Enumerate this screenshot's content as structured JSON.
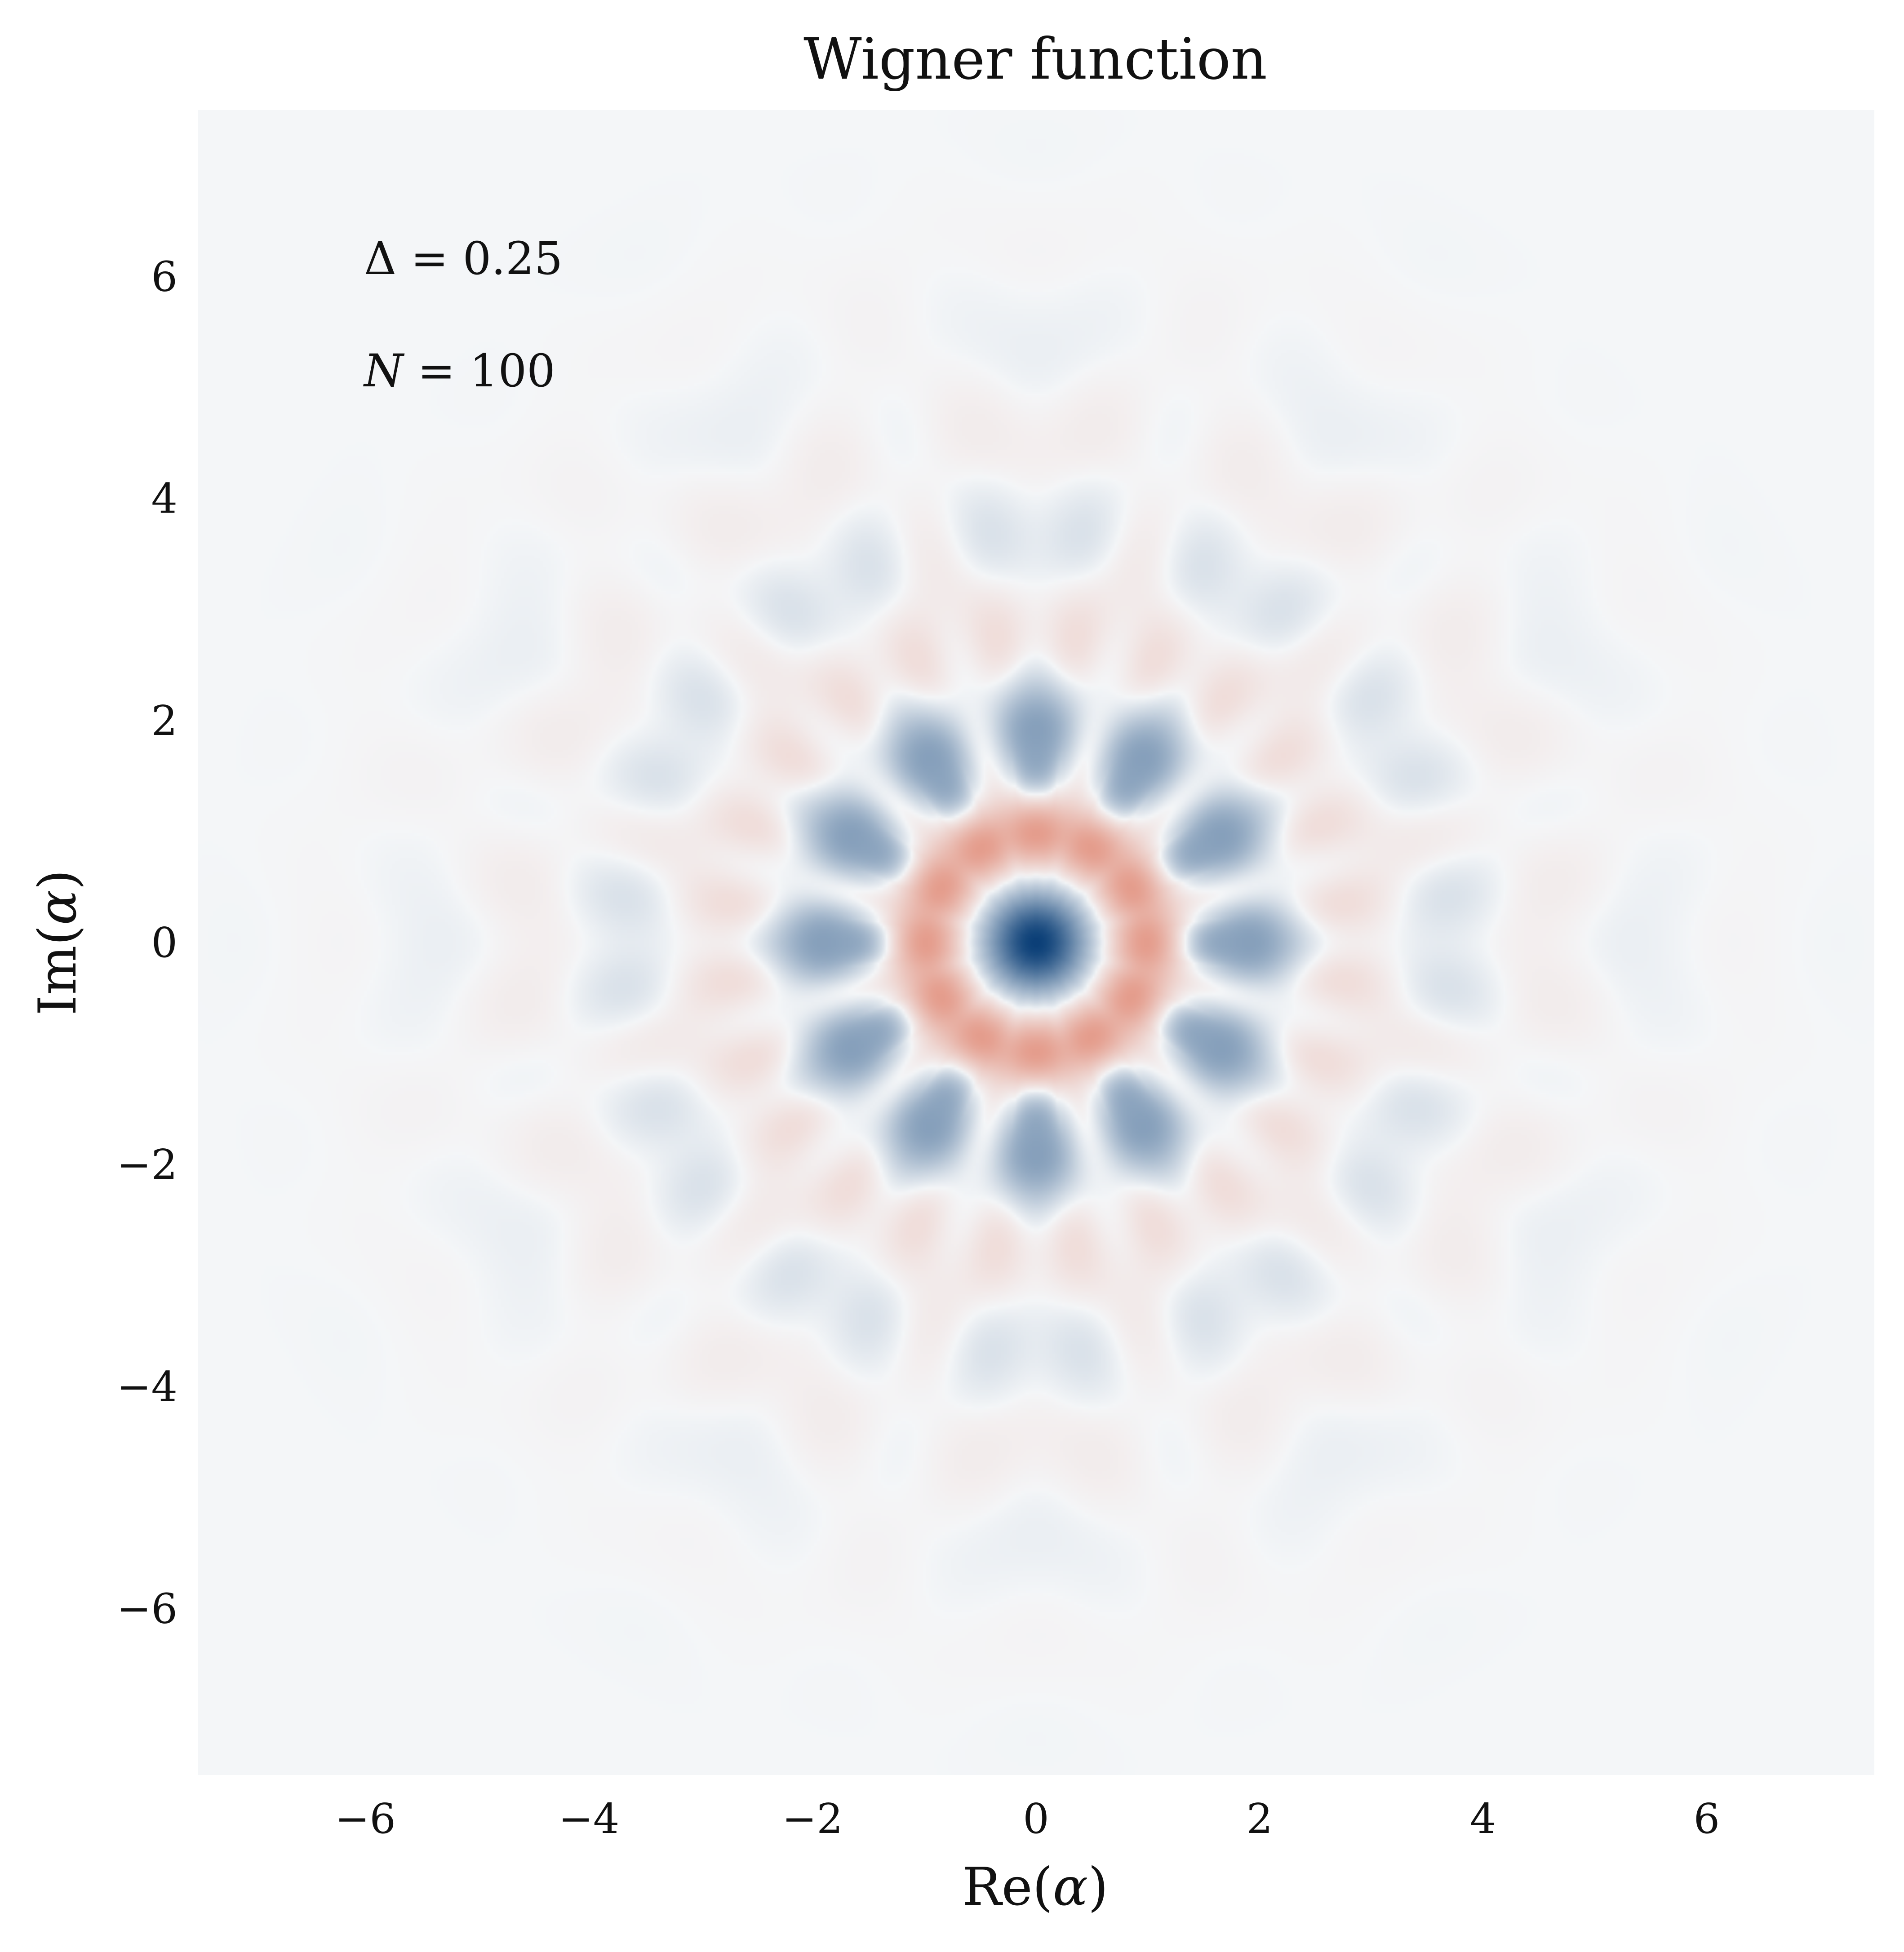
{
  "chart_data": {
    "type": "heatmap",
    "title": "Wigner function",
    "xlabel_pre": "Re(",
    "xlabel_var": "α",
    "xlabel_post": ")",
    "ylabel_pre": "Im(",
    "ylabel_var": "α",
    "ylabel_post": ")",
    "xlim": [
      -7.5,
      7.5
    ],
    "ylim": [
      -7.5,
      7.5
    ],
    "xticks": [
      -6,
      -4,
      -2,
      0,
      2,
      4,
      6
    ],
    "yticks": [
      -6,
      -4,
      -2,
      0,
      2,
      4,
      6
    ],
    "xtick_labels": [
      "−6",
      "−4",
      "−2",
      "0",
      "2",
      "4",
      "6"
    ],
    "ytick_labels": [
      "−6",
      "−4",
      "−2",
      "0",
      "2",
      "4",
      "6"
    ],
    "grid": false,
    "colormap": "RdBu (blue positive, red negative)",
    "colors": {
      "positive": "#0b3f77",
      "negative": "#dc6d53",
      "zero": "#f4f6f8"
    },
    "symmetry": "12-fold rotational",
    "features": {
      "center_peak": {
        "x": 0,
        "y": 0,
        "sign": "positive"
      },
      "negative_ring_radius": 1.0,
      "positive_petal_ring_radius": 1.95
    },
    "annotations": [
      {
        "symbol": "Δ",
        "eq": " = ",
        "value": "0.25"
      },
      {
        "symbol": "N",
        "eq": " = ",
        "value": "100"
      }
    ]
  }
}
